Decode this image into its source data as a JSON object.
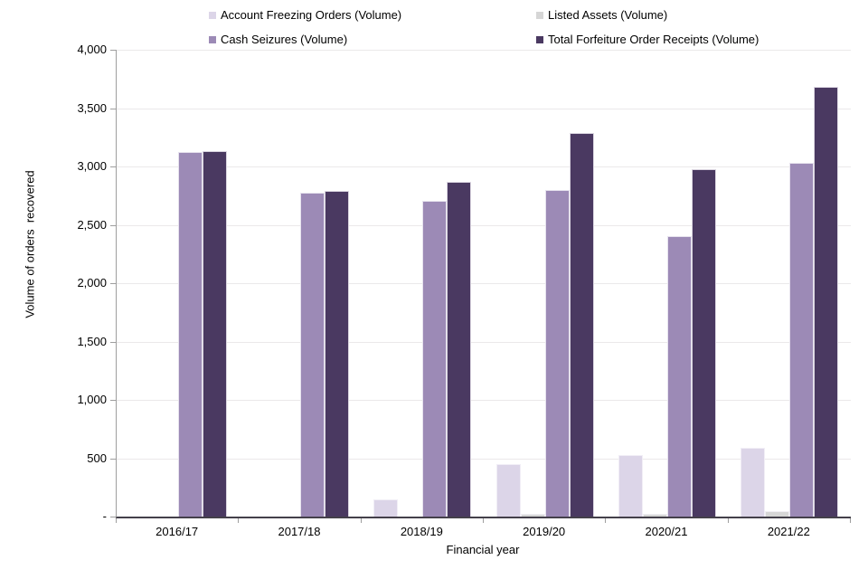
{
  "legend": {
    "items": [
      {
        "label": "Account Freezing Orders (Volume)",
        "color": "#dcd5e8"
      },
      {
        "label": "Listed Assets (Volume)",
        "color": "#d6d6d6"
      },
      {
        "label": "Cash Seizures (Volume)",
        "color": "#9c8ab6"
      },
      {
        "label": "Total Forfeiture Order Receipts (Volume)",
        "color": "#4a3961"
      }
    ]
  },
  "axes": {
    "y_title": "Volume of orders  recovered",
    "x_title": "Financial year",
    "y_ticks": [
      "4,000",
      "3,500",
      "3,000",
      "2,500",
      "2,000",
      "1,500",
      "1,000",
      "500",
      "-"
    ]
  },
  "chart_data": {
    "type": "bar",
    "title": "",
    "categories": [
      "2016/17",
      "2017/18",
      "2018/19",
      "2019/20",
      "2020/21",
      "2021/22"
    ],
    "series": [
      {
        "name": "Account Freezing Orders (Volume)",
        "color": "#dcd5e8",
        "values": [
          0,
          0,
          150,
          450,
          530,
          590
        ]
      },
      {
        "name": "Listed Assets (Volume)",
        "color": "#d6d6d6",
        "values": [
          0,
          0,
          0,
          25,
          25,
          45
        ]
      },
      {
        "name": "Cash Seizures (Volume)",
        "color": "#9c8ab6",
        "values": [
          3125,
          2775,
          2705,
          2800,
          2400,
          3030
        ]
      },
      {
        "name": "Total Forfeiture Order Receipts (Volume)",
        "color": "#4a3961",
        "values": [
          3135,
          2790,
          2865,
          3290,
          2975,
          3685
        ]
      }
    ],
    "xlabel": "Financial year",
    "ylabel": "Volume of orders  recovered",
    "ylim": [
      0,
      4000
    ],
    "ytick_step": 500,
    "grid": true,
    "legend_position": "top",
    "gridline_color": "#ebe9ea",
    "axis_line_color": "#9e9e9e"
  }
}
